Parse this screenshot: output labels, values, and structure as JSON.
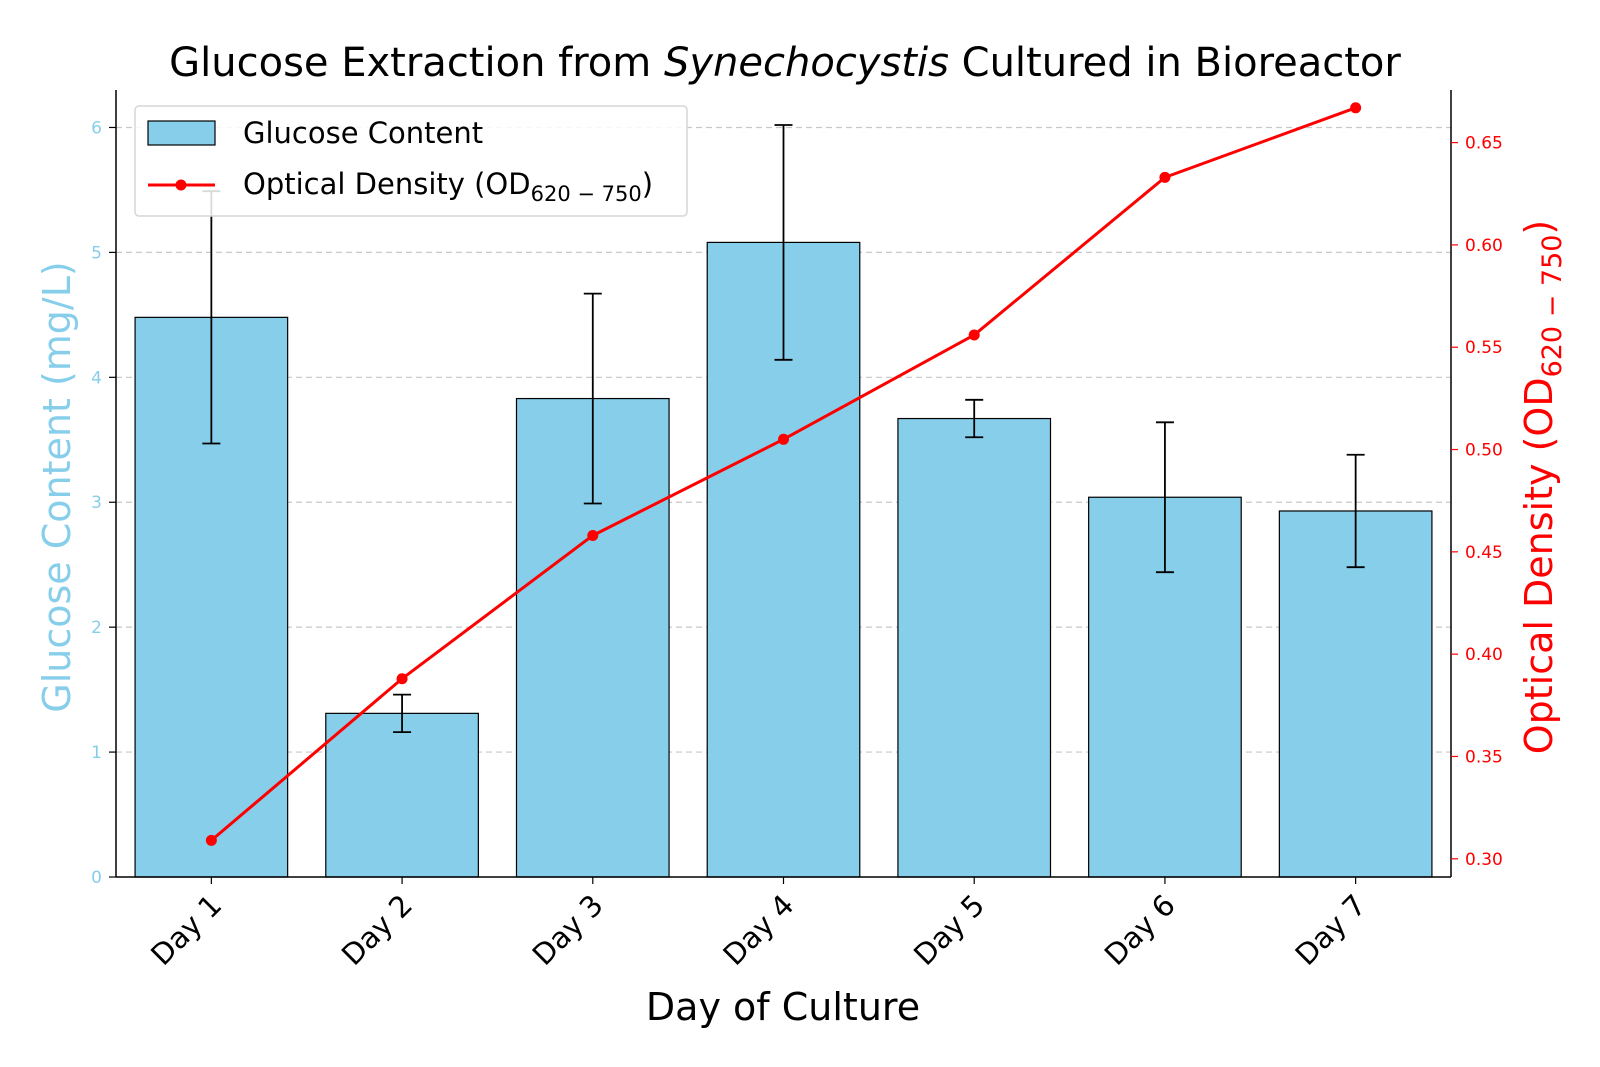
{
  "chart_data": {
    "type": "bar",
    "title_prefix": "Glucose Extraction from ",
    "title_italic": "Synechocystis",
    "title_suffix": " Cultured in Bioreactor",
    "categories": [
      "Day 1",
      "Day 2",
      "Day 3",
      "Day 4",
      "Day 5",
      "Day 6",
      "Day 7"
    ],
    "xlabel": "Day of Culture",
    "bar_series": {
      "name": "Glucose Content",
      "values": [
        4.48,
        1.31,
        3.83,
        5.08,
        3.67,
        3.04,
        2.93
      ],
      "errors": [
        1.01,
        0.15,
        0.84,
        0.94,
        0.15,
        0.6,
        0.45
      ],
      "color": "#87ceeb"
    },
    "line_series": {
      "name_base": "Optical Density (OD",
      "name_sub": "620 − 750",
      "name_close": ")",
      "values": [
        0.309,
        0.388,
        0.458,
        0.505,
        0.556,
        0.633,
        0.667
      ],
      "color": "#ff0000"
    },
    "y_left": {
      "label": "Glucose Content (mg/L)",
      "ylim": [
        0,
        6.3
      ],
      "ticks": [
        0,
        1,
        2,
        3,
        4,
        5,
        6
      ],
      "tick_labels": [
        "0",
        "1",
        "2",
        "3",
        "4",
        "5",
        "6"
      ],
      "color": "#87ceeb"
    },
    "y_right": {
      "label_base": "Optical Density (OD",
      "label_sub": "620 − 750",
      "label_close": ")",
      "ylim": [
        0.2911,
        0.6757
      ],
      "ticks": [
        0.3,
        0.35,
        0.4,
        0.45,
        0.5,
        0.55,
        0.6,
        0.65
      ],
      "tick_labels": [
        "0.30",
        "0.35",
        "0.40",
        "0.45",
        "0.50",
        "0.55",
        "0.60",
        "0.65"
      ],
      "color": "#ff0000"
    },
    "grid": "horizontal dashed",
    "legend_position": "top-left"
  }
}
